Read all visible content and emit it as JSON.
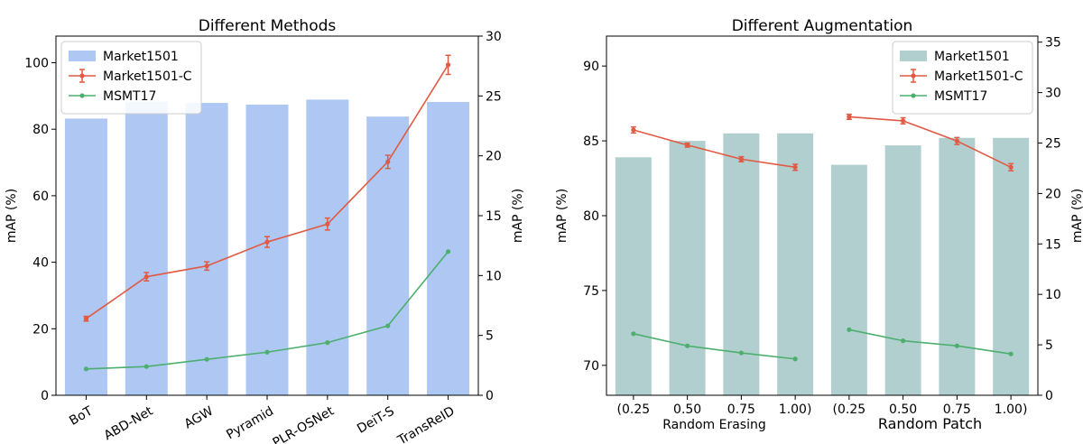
{
  "chart_data": [
    {
      "type": "bar",
      "title": "Different Methods",
      "ylabel": "mAP (%)",
      "y2label": "mAP (%)",
      "ylim": [
        0,
        108
      ],
      "y2lim": [
        0,
        30
      ],
      "yticks": [
        0,
        20,
        40,
        60,
        80,
        100
      ],
      "y2ticks": [
        0,
        5,
        10,
        15,
        20,
        25,
        30
      ],
      "categories": [
        "BoT",
        "ABD-Net",
        "AGW",
        "Pyramid",
        "PLR-OSNet",
        "DeiT-S",
        "TransReID"
      ],
      "legend_position": "top-left",
      "series": [
        {
          "name": "Market1501",
          "kind": "bar",
          "axis": "left",
          "color": "#aec7f3",
          "values": [
            83.2,
            88.3,
            87.9,
            87.4,
            88.9,
            83.8,
            88.2
          ]
        },
        {
          "name": "Market1501-C",
          "kind": "line",
          "axis": "right",
          "color": "#e05a44",
          "values": [
            6.4,
            9.9,
            10.8,
            12.8,
            14.3,
            19.5,
            27.6
          ],
          "errors": [
            0.2,
            0.35,
            0.35,
            0.45,
            0.5,
            0.55,
            0.8
          ]
        },
        {
          "name": "MSMT17",
          "kind": "line",
          "axis": "right",
          "color": "#4caf6e",
          "values": [
            2.2,
            2.4,
            3.0,
            3.6,
            4.4,
            5.8,
            12.0
          ]
        }
      ]
    },
    {
      "type": "bar",
      "title": "Different Augmentation",
      "ylabel": "mAP (%)",
      "y2label": "mAP (%)",
      "ylim": [
        68,
        92
      ],
      "y2lim": [
        0,
        35.6
      ],
      "yticks": [
        70,
        75,
        80,
        85,
        90
      ],
      "y2ticks": [
        0,
        5,
        10,
        15,
        20,
        25,
        30,
        35
      ],
      "categories": [
        "(0.25",
        "0.50",
        "0.75",
        "1.00)",
        "(0.25",
        "0.50",
        "0.75",
        "1.00)"
      ],
      "group_labels": [
        "Random Erasing",
        "Random Patch"
      ],
      "legend_position": "top-right",
      "series": [
        {
          "name": "Market1501",
          "kind": "bar",
          "axis": "left",
          "color": "#b2cfcf",
          "values": [
            83.9,
            85.0,
            85.5,
            85.5,
            83.4,
            84.7,
            85.2,
            85.2
          ]
        },
        {
          "name": "Market1501-C",
          "kind": "line",
          "axis": "right",
          "color": "#e05a44",
          "values": [
            26.3,
            24.8,
            23.4,
            22.6,
            27.6,
            27.2,
            25.2,
            22.6
          ],
          "errors": [
            0.3,
            0.2,
            0.25,
            0.3,
            0.25,
            0.3,
            0.35,
            0.35
          ],
          "segments": [
            [
              0,
              3
            ],
            [
              4,
              7
            ]
          ]
        },
        {
          "name": "MSMT17",
          "kind": "line",
          "axis": "right",
          "color": "#4caf6e",
          "values": [
            6.1,
            4.9,
            4.2,
            3.6,
            6.5,
            5.4,
            4.9,
            4.1
          ],
          "segments": [
            [
              0,
              3
            ],
            [
              4,
              7
            ]
          ]
        }
      ]
    }
  ]
}
